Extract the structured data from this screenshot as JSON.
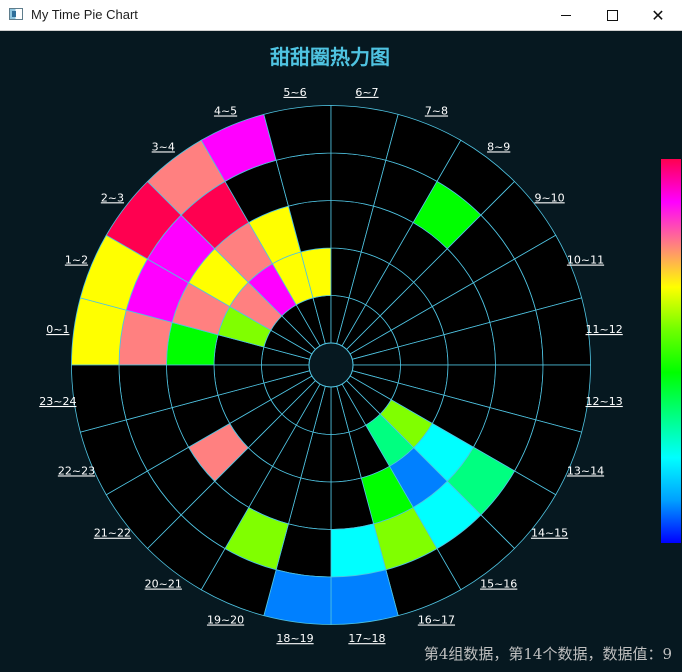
{
  "window": {
    "title": "My Time Pie Chart",
    "minimize_glyph": "",
    "maximize_glyph": "",
    "close_glyph": "✕"
  },
  "status_text": "第4组数据，第14个数据，数据值：9",
  "colors": {
    "background": "#061820",
    "grid": "#4fc3e1",
    "label": "#ffffff",
    "empty": "#000000"
  },
  "colorbar": {
    "stops": [
      "#0000ff",
      "#00a0ff",
      "#00ffff",
      "#00ff80",
      "#00ff00",
      "#70ff00",
      "#ffff00",
      "#ff8080",
      "#ff00ff",
      "#ff0050"
    ]
  },
  "chart_data": {
    "type": "heatmap",
    "title": "甜甜圈热力图",
    "segments": [
      "0~1",
      "1~2",
      "2~3",
      "3~4",
      "4~5",
      "5~6",
      "6~7",
      "7~8",
      "8~9",
      "9~10",
      "10~11",
      "11~12",
      "12~13",
      "13~14",
      "14~15",
      "15~16",
      "16~17",
      "17~18",
      "18~19",
      "19~20",
      "20~21",
      "21~22",
      "22~23",
      "23~24"
    ],
    "rings": 5,
    "value_range": [
      0,
      10
    ],
    "cells": [
      {
        "ring": 1,
        "seg": 1,
        "color": "#80ff00"
      },
      {
        "ring": 1,
        "seg": 2,
        "color": "#ff8080"
      },
      {
        "ring": 1,
        "seg": 3,
        "color": "#ff00ff"
      },
      {
        "ring": 1,
        "seg": 4,
        "color": "#ffff00"
      },
      {
        "ring": 1,
        "seg": 5,
        "color": "#ffff00"
      },
      {
        "ring": 1,
        "seg": 14,
        "color": "#80ff00"
      },
      {
        "ring": 1,
        "seg": 15,
        "color": "#00ff80"
      },
      {
        "ring": 2,
        "seg": 0,
        "color": "#00ff00"
      },
      {
        "ring": 2,
        "seg": 1,
        "color": "#ff8080"
      },
      {
        "ring": 2,
        "seg": 2,
        "color": "#ffff00"
      },
      {
        "ring": 2,
        "seg": 3,
        "color": "#ff8080"
      },
      {
        "ring": 2,
        "seg": 4,
        "color": "#ffff00"
      },
      {
        "ring": 2,
        "seg": 14,
        "color": "#00ffff"
      },
      {
        "ring": 2,
        "seg": 15,
        "color": "#0080ff"
      },
      {
        "ring": 2,
        "seg": 16,
        "color": "#00ff00"
      },
      {
        "ring": 2,
        "seg": 21,
        "color": "#ff8080"
      },
      {
        "ring": 3,
        "seg": 0,
        "color": "#ff8080"
      },
      {
        "ring": 3,
        "seg": 1,
        "color": "#ff00ff"
      },
      {
        "ring": 3,
        "seg": 2,
        "color": "#ff00ff"
      },
      {
        "ring": 3,
        "seg": 3,
        "color": "#ff0050"
      },
      {
        "ring": 3,
        "seg": 8,
        "color": "#00ff00"
      },
      {
        "ring": 3,
        "seg": 14,
        "color": "#00ff80"
      },
      {
        "ring": 3,
        "seg": 15,
        "color": "#00ffff"
      },
      {
        "ring": 3,
        "seg": 16,
        "color": "#80ff00"
      },
      {
        "ring": 3,
        "seg": 17,
        "color": "#00ffff"
      },
      {
        "ring": 3,
        "seg": 19,
        "color": "#80ff00"
      },
      {
        "ring": 4,
        "seg": 0,
        "color": "#ffff00"
      },
      {
        "ring": 4,
        "seg": 1,
        "color": "#ffff00"
      },
      {
        "ring": 4,
        "seg": 2,
        "color": "#ff0050"
      },
      {
        "ring": 4,
        "seg": 3,
        "color": "#ff8080"
      },
      {
        "ring": 4,
        "seg": 4,
        "color": "#ff00ff"
      },
      {
        "ring": 4,
        "seg": 17,
        "color": "#0080ff"
      },
      {
        "ring": 4,
        "seg": 18,
        "color": "#0080ff"
      }
    ]
  }
}
